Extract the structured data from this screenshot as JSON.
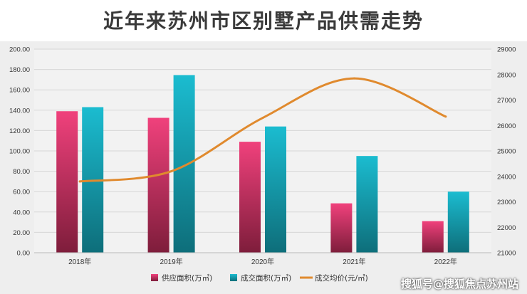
{
  "chart_data": {
    "type": "bar",
    "title": "近年来苏州市区别墅产品供需走势",
    "categories": [
      "2018年",
      "2019年",
      "2020年",
      "2021年",
      "2022年"
    ],
    "series": [
      {
        "name": "供应面积(万㎡)",
        "type": "bar",
        "axis": "left",
        "values": [
          139,
          132.5,
          109,
          48.5,
          31
        ],
        "color_top": "#f0417c",
        "color_bottom": "#7e1d3b"
      },
      {
        "name": "成交面积(万㎡)",
        "type": "bar",
        "axis": "left",
        "values": [
          143,
          174.5,
          124,
          95,
          60
        ],
        "color_top": "#1bbcd0",
        "color_bottom": "#0e6e7a"
      },
      {
        "name": "成交均价(元/㎡)",
        "type": "line",
        "axis": "right",
        "values": [
          23800,
          24200,
          26300,
          27850,
          26350
        ],
        "color": "#e08a2e"
      }
    ],
    "y_left": {
      "min": 0,
      "max": 200,
      "step": 20,
      "tick_labels": [
        "0.00",
        "20.00",
        "40.00",
        "60.00",
        "80.00",
        "100.00",
        "120.00",
        "140.00",
        "160.00",
        "180.00",
        "200.00"
      ]
    },
    "y_right": {
      "min": 21000,
      "max": 29000,
      "step": 1000,
      "tick_labels": [
        "21000",
        "22000",
        "23000",
        "24000",
        "25000",
        "26000",
        "27000",
        "28000",
        "29000"
      ]
    },
    "grid": true,
    "legend": "bottom"
  },
  "watermark": "搜狐号@搜狐焦点苏州站"
}
